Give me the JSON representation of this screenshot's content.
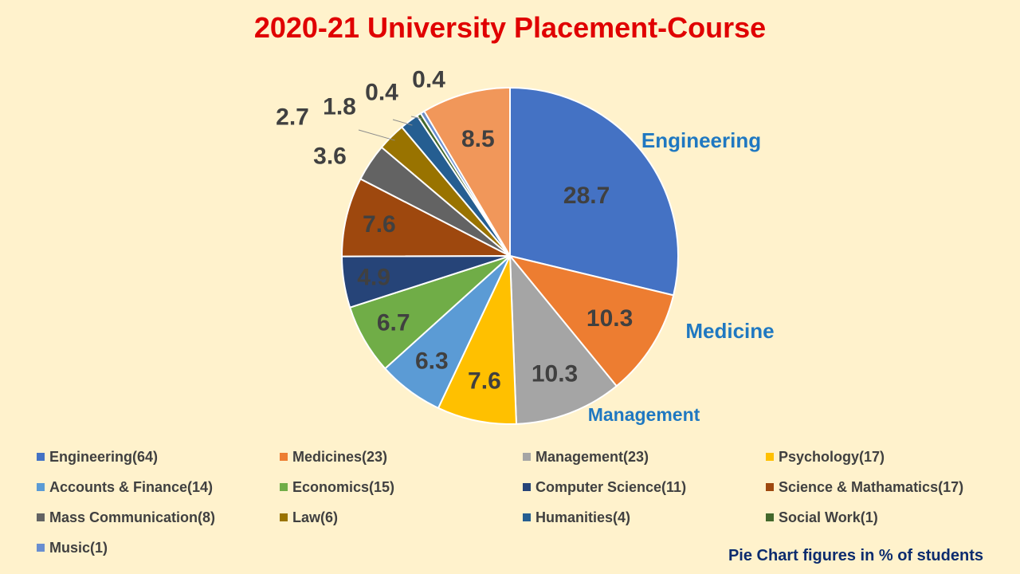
{
  "title": "2020-21 University Placement-Course",
  "footnote": "Pie Chart figures in % of students",
  "chart_data": {
    "type": "pie",
    "title": "2020-21 University Placement-Course",
    "start_angle_deg": 0,
    "direction": "clockwise",
    "slices": [
      {
        "legend": "Engineering(64)",
        "value": 28.7,
        "label": "28.7",
        "color": "#4472c4",
        "category_label": "Engineering"
      },
      {
        "legend": "Medicines(23)",
        "value": 10.3,
        "label": "10.3",
        "color": "#ed7d31",
        "category_label": "Medicine"
      },
      {
        "legend": "Management(23)",
        "value": 10.3,
        "label": "10.3",
        "color": "#a5a5a5",
        "category_label": "Management"
      },
      {
        "legend": "Psychology(17)",
        "value": 7.6,
        "label": "7.6",
        "color": "#ffc000",
        "category_label": ""
      },
      {
        "legend": "Accounts & Finance(14)",
        "value": 6.3,
        "label": "6.3",
        "color": "#5b9bd5",
        "category_label": ""
      },
      {
        "legend": "Economics(15)",
        "value": 6.7,
        "label": "6.7",
        "color": "#70ad47",
        "category_label": ""
      },
      {
        "legend": "Computer Science(11)",
        "value": 4.9,
        "label": "4.9",
        "color": "#264478",
        "category_label": ""
      },
      {
        "legend": "Science & Mathamatics(17)",
        "value": 7.6,
        "label": "7.6",
        "color": "#9e480e",
        "category_label": ""
      },
      {
        "legend": "Mass Communication(8)",
        "value": 3.6,
        "label": "3.6",
        "color": "#636363",
        "category_label": ""
      },
      {
        "legend": "Law(6)",
        "value": 2.7,
        "label": "2.7",
        "color": "#997300",
        "category_label": ""
      },
      {
        "legend": "Humanities(4)",
        "value": 1.8,
        "label": "1.8",
        "color": "#255e91",
        "category_label": ""
      },
      {
        "legend": "Social Work(1)",
        "value": 0.4,
        "label": "0.4",
        "color": "#43682b",
        "category_label": ""
      },
      {
        "legend": "Music(1)",
        "value": 0.4,
        "label": "0.4",
        "color": "#698ed0",
        "category_label": ""
      },
      {
        "legend": "",
        "value": 8.5,
        "label": "8.5",
        "color": "#f1975a",
        "category_label": ""
      }
    ],
    "legend_position": "bottom"
  }
}
